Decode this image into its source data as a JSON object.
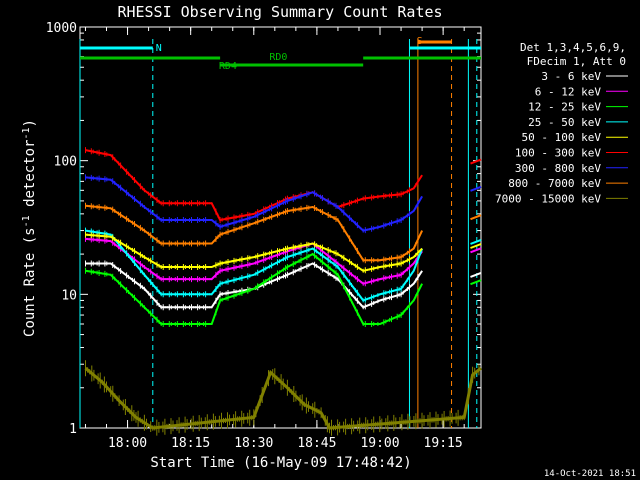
{
  "chart_data": {
    "type": "line",
    "title": "RHESSI Observing Summary Count Rates",
    "xlabel": "Start Time (16-May-09 17:48:42)",
    "ylabel": "Count Rate (s",
    "ylabel_sup": "-1",
    "ylabel_tail": " detector",
    "ylabel_tail_sup": "-1",
    "ylabel_close": ")",
    "y_scale": "log",
    "ylim": [
      1,
      1000
    ],
    "xlim": [
      "17:48:42",
      "19:24:00"
    ],
    "x_ticks": [
      "18:00",
      "18:15",
      "18:30",
      "18:45",
      "19:00",
      "19:15"
    ],
    "y_ticks": [
      "1",
      "10",
      "100",
      "1000"
    ],
    "timestamp": "14-Oct-2021 18:51",
    "legend_header": [
      "Det 1,3,4,5,6,9,",
      "FDecim 1, Att 0"
    ],
    "legend_placement": "right",
    "annotations": [
      {
        "text": "N",
        "time": "18:06",
        "color": "#00ffff"
      },
      {
        "text": "S",
        "time": "19:08",
        "color": "#ff8000"
      },
      {
        "text": "RD0",
        "time": "18:33",
        "color": "#00c000"
      },
      {
        "text": "RD4",
        "time": "18:21",
        "color": "#00c000"
      }
    ],
    "series": [
      {
        "name": "3 - 6 keV",
        "color": "#ffffff",
        "x": [
          "17:50",
          "17:56",
          "18:04",
          "18:08",
          "18:20",
          "18:22",
          "18:30",
          "18:38",
          "18:44",
          "18:50",
          "18:56",
          "19:00",
          "19:05",
          "19:08",
          "19:10"
        ],
        "values": [
          17,
          17,
          11,
          8,
          8,
          10,
          11,
          14,
          17,
          13,
          8,
          9,
          10,
          12,
          15
        ]
      },
      {
        "name": "6 - 12 keV",
        "color": "#ff00ff",
        "x": [
          "17:50",
          "17:56",
          "18:04",
          "18:08",
          "18:20",
          "18:22",
          "18:30",
          "18:38",
          "18:44",
          "18:50",
          "18:56",
          "19:00",
          "19:05",
          "19:08",
          "19:10"
        ],
        "values": [
          26,
          25,
          16,
          13,
          13,
          15,
          17,
          21,
          24,
          17,
          12,
          13,
          14,
          17,
          21
        ]
      },
      {
        "name": "12 - 25 keV",
        "color": "#00ff00",
        "x": [
          "17:50",
          "17:56",
          "18:04",
          "18:08",
          "18:20",
          "18:22",
          "18:30",
          "18:38",
          "18:44",
          "18:50",
          "18:56",
          "19:00",
          "19:05",
          "19:08",
          "19:10"
        ],
        "values": [
          15,
          14,
          8,
          6,
          6,
          9,
          11,
          16,
          20,
          14,
          6,
          6,
          7,
          9,
          12
        ]
      },
      {
        "name": "25 - 50 keV",
        "color": "#00ffff",
        "x": [
          "17:50",
          "17:56",
          "18:04",
          "18:08",
          "18:20",
          "18:22",
          "18:30",
          "18:38",
          "18:44",
          "18:50",
          "18:56",
          "19:00",
          "19:05",
          "19:08",
          "19:10"
        ],
        "values": [
          30,
          28,
          14,
          10,
          10,
          12,
          14,
          19,
          22,
          16,
          9,
          10,
          11,
          15,
          22
        ]
      },
      {
        "name": "50 - 100 keV",
        "color": "#ffff00",
        "x": [
          "17:50",
          "17:56",
          "18:04",
          "18:08",
          "18:20",
          "18:22",
          "18:30",
          "18:38",
          "18:44",
          "18:50",
          "18:56",
          "19:00",
          "19:05",
          "19:08",
          "19:10"
        ],
        "values": [
          28,
          27,
          19,
          16,
          16,
          17,
          19,
          22,
          24,
          20,
          15,
          16,
          17,
          19,
          22
        ]
      },
      {
        "name": "100 - 300 keV",
        "color": "#ff0000",
        "x": [
          "17:50",
          "17:56",
          "18:04",
          "18:08",
          "18:20",
          "18:22",
          "18:30",
          "18:38",
          "18:44",
          "18:50",
          "18:56",
          "19:00",
          "19:05",
          "19:08",
          "19:10"
        ],
        "values": [
          120,
          110,
          60,
          48,
          48,
          36,
          40,
          52,
          58,
          45,
          52,
          54,
          56,
          62,
          78
        ]
      },
      {
        "name": "300 - 800 keV",
        "color": "#2222ff",
        "x": [
          "17:50",
          "17:56",
          "18:04",
          "18:08",
          "18:20",
          "18:22",
          "18:30",
          "18:38",
          "18:44",
          "18:50",
          "18:56",
          "19:00",
          "19:05",
          "19:08",
          "19:10"
        ],
        "values": [
          75,
          72,
          45,
          36,
          36,
          32,
          38,
          50,
          58,
          45,
          30,
          32,
          36,
          42,
          54
        ]
      },
      {
        "name": "800 - 7000 keV",
        "color": "#ff8000",
        "x": [
          "17:50",
          "17:56",
          "18:04",
          "18:08",
          "18:20",
          "18:22",
          "18:30",
          "18:38",
          "18:44",
          "18:50",
          "18:56",
          "19:00",
          "19:05",
          "19:08",
          "19:10"
        ],
        "values": [
          46,
          44,
          30,
          24,
          24,
          28,
          34,
          42,
          45,
          36,
          18,
          18,
          19,
          22,
          30
        ]
      },
      {
        "name": "7000 - 15000 keV",
        "color": "#808000",
        "x": [
          "17:50",
          "17:54",
          "17:58",
          "18:02",
          "18:06",
          "18:30",
          "18:34",
          "18:38",
          "18:42",
          "18:46",
          "18:48",
          "19:20",
          "19:22",
          "19:24"
        ],
        "values": [
          2.8,
          2.2,
          1.6,
          1.2,
          1.0,
          1.2,
          2.6,
          2.0,
          1.5,
          1.3,
          1.0,
          1.2,
          2.5,
          2.8
        ]
      }
    ]
  }
}
